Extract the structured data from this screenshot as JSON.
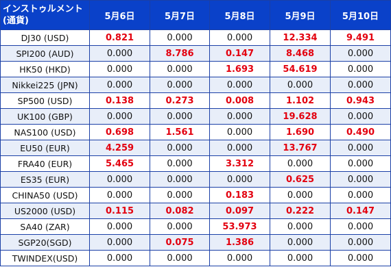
{
  "table": {
    "header_line1": "インストゥルメント",
    "header_line2": "(通貨)",
    "dates": [
      "5月6日",
      "5月7日",
      "5月8日",
      "5月9日",
      "5月10日"
    ],
    "highlight_color": "#e3000f",
    "header_bg": "#0a41c9",
    "rows": [
      {
        "name": "DJ30 (USD)",
        "values": [
          "0.821",
          "0.000",
          "0.000",
          "12.334",
          "9.491"
        ]
      },
      {
        "name": "SPI200 (AUD)",
        "values": [
          "0.000",
          "8.786",
          "0.147",
          "8.468",
          "0.000"
        ]
      },
      {
        "name": "HK50 (HKD)",
        "values": [
          "0.000",
          "0.000",
          "1.693",
          "54.619",
          "0.000"
        ]
      },
      {
        "name": "Nikkei225 (JPN)",
        "values": [
          "0.000",
          "0.000",
          "0.000",
          "0.000",
          "0.000"
        ]
      },
      {
        "name": "SP500 (USD)",
        "values": [
          "0.138",
          "0.273",
          "0.008",
          "1.102",
          "0.943"
        ]
      },
      {
        "name": "UK100 (GBP)",
        "values": [
          "0.000",
          "0.000",
          "0.000",
          "19.628",
          "0.000"
        ]
      },
      {
        "name": "NAS100 (USD)",
        "values": [
          "0.698",
          "1.561",
          "0.000",
          "1.690",
          "0.490"
        ]
      },
      {
        "name": "EU50 (EUR)",
        "values": [
          "4.259",
          "0.000",
          "0.000",
          "13.767",
          "0.000"
        ]
      },
      {
        "name": "FRA40 (EUR)",
        "values": [
          "5.465",
          "0.000",
          "3.312",
          "0.000",
          "0.000"
        ]
      },
      {
        "name": "ES35 (EUR)",
        "values": [
          "0.000",
          "0.000",
          "0.000",
          "0.625",
          "0.000"
        ]
      },
      {
        "name": "CHINA50 (USD)",
        "values": [
          "0.000",
          "0.000",
          "0.183",
          "0.000",
          "0.000"
        ]
      },
      {
        "name": "US2000 (USD)",
        "values": [
          "0.115",
          "0.082",
          "0.097",
          "0.222",
          "0.147"
        ]
      },
      {
        "name": "SA40 (ZAR)",
        "values": [
          "0.000",
          "0.000",
          "53.973",
          "0.000",
          "0.000"
        ]
      },
      {
        "name": "SGP20(SGD)",
        "values": [
          "0.000",
          "0.075",
          "1.386",
          "0.000",
          "0.000"
        ]
      },
      {
        "name": "TWINDEX(USD)",
        "values": [
          "0.000",
          "0.000",
          "0.000",
          "0.000",
          "0.000"
        ]
      }
    ]
  }
}
